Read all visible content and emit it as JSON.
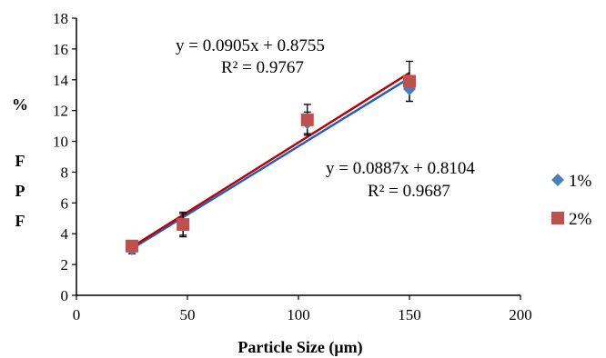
{
  "chart_data": {
    "type": "scatter",
    "xlabel": "Particle Size (μm)",
    "ylabel": [
      "%",
      "F",
      "P",
      "F"
    ],
    "xlim": [
      0,
      200
    ],
    "ylim": [
      0,
      18
    ],
    "xticks": [
      0,
      50,
      100,
      150,
      200
    ],
    "yticks": [
      0,
      2,
      4,
      6,
      8,
      10,
      12,
      14,
      16,
      18
    ],
    "grid": false,
    "legend_position": "right",
    "series": [
      {
        "name": "1%",
        "color": "#4a7ebb",
        "marker": "diamond",
        "trendline_color": "#1f5fbf",
        "points": [
          {
            "x": 25,
            "y": 3.0,
            "err": 0.3
          },
          {
            "x": 48,
            "y": 4.6,
            "err": 0.8
          },
          {
            "x": 104,
            "y": 11.2,
            "err": 0.7
          },
          {
            "x": 150,
            "y": 13.4,
            "err": 0.8
          }
        ],
        "trendline": {
          "slope": 0.0887,
          "intercept": 0.8104,
          "x_range": [
            25,
            150
          ]
        },
        "equation": "y = 0.0887x + 0.8104",
        "r2": "R² = 0.9687"
      },
      {
        "name": "2%",
        "color": "#c0504d",
        "marker": "square",
        "trendline_color": "#c00000",
        "points": [
          {
            "x": 25,
            "y": 3.2,
            "err": 0.2
          },
          {
            "x": 48,
            "y": 4.6,
            "err": 0.7
          },
          {
            "x": 104,
            "y": 11.4,
            "err": 1.0
          },
          {
            "x": 150,
            "y": 13.9,
            "err": 1.3
          }
        ],
        "trendline": {
          "slope": 0.0905,
          "intercept": 0.8755,
          "x_range": [
            25,
            150
          ]
        },
        "equation": "y = 0.0905x + 0.8755",
        "r2": "R² = 0.9767"
      }
    ]
  }
}
